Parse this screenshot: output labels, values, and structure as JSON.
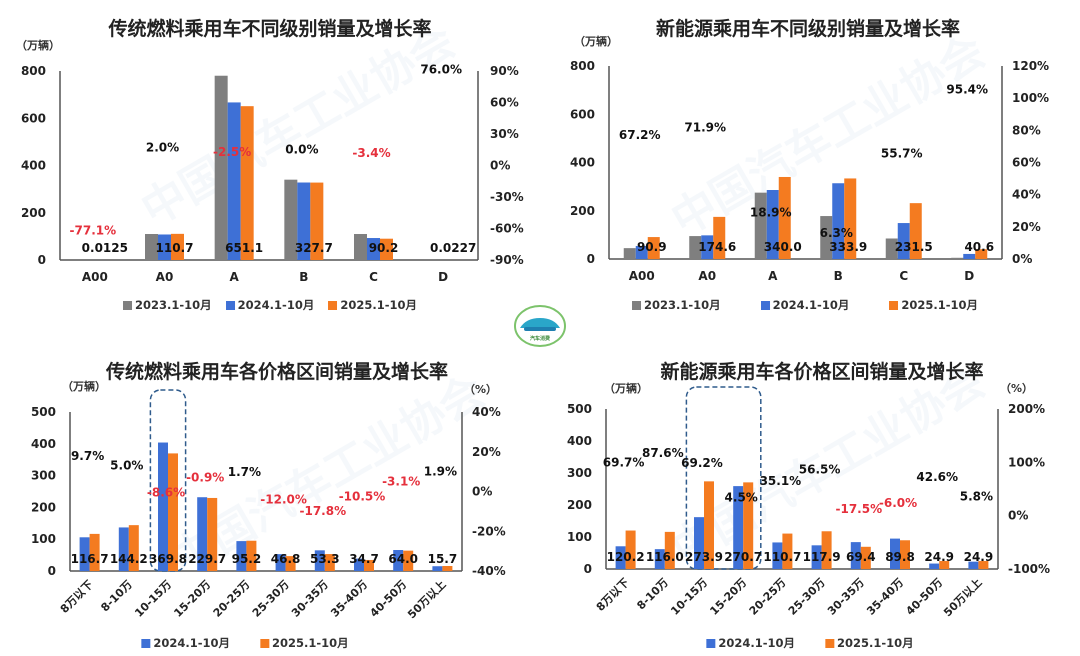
{
  "colors": {
    "y2023": "#7f7f7f",
    "y2024": "#3e70d6",
    "y2025": "#f47b20",
    "negative_label": "#e5303c",
    "positive_label": "#111111",
    "highlight_box": "#2f5b8c"
  },
  "logo_text": "汽车消费",
  "watermark": "中国汽车工业协会",
  "chart_data": [
    {
      "type": "bar",
      "title": "传统燃料乘用车不同级别销量及增长率",
      "ylabel": "（万辆）",
      "y2label": "",
      "categories": [
        "A00",
        "A0",
        "A",
        "B",
        "C",
        "D"
      ],
      "ylim": [
        0,
        800
      ],
      "yticks": [
        "0",
        "200",
        "400",
        "600",
        "800"
      ],
      "y2lim": [
        -90,
        90
      ],
      "y2ticks": [
        "-90%",
        "-60%",
        "-30%",
        "0%",
        "30%",
        "60%",
        "90%"
      ],
      "series": [
        {
          "name": "2023.1-10月",
          "values": [
            0.05,
            110,
            780,
            340,
            110,
            0.1
          ]
        },
        {
          "name": "2024.1-10月",
          "values": [
            0.05,
            108,
            667,
            328,
            93,
            0.01
          ]
        },
        {
          "name": "2025.1-10月",
          "values": [
            0.0125,
            110.7,
            651.1,
            327.7,
            90.2,
            0.0227
          ]
        }
      ],
      "value_labels": [
        "0.0125",
        "110.7",
        "651.1",
        "327.7",
        "90.2",
        "0.0227"
      ],
      "growth": [
        -77.1,
        2.0,
        -2.5,
        0.0,
        -3.4,
        76.0
      ],
      "growth_labels": [
        "-77.1%",
        "2.0%",
        "-2.5%",
        "0.0%",
        "-3.4%",
        "76.0%"
      ],
      "legend": "bottom",
      "grid": false
    },
    {
      "type": "bar",
      "title": "新能源乘用车不同级别销量及增长率",
      "ylabel": "（万辆）",
      "y2label": "",
      "categories": [
        "A00",
        "A0",
        "A",
        "B",
        "C",
        "D"
      ],
      "ylim": [
        0,
        800
      ],
      "yticks": [
        "0",
        "200",
        "400",
        "600",
        "800"
      ],
      "y2lim": [
        0,
        120
      ],
      "y2ticks": [
        "0%",
        "20%",
        "40%",
        "60%",
        "80%",
        "100%",
        "120%"
      ],
      "series": [
        {
          "name": "2023.1-10月",
          "values": [
            45,
            95,
            275,
            178,
            85,
            5
          ]
        },
        {
          "name": "2024.1-10月",
          "values": [
            54,
            98,
            286,
            314,
            149,
            21
          ]
        },
        {
          "name": "2025.1-10月",
          "values": [
            90.9,
            174.6,
            340.0,
            333.9,
            231.5,
            40.6
          ]
        }
      ],
      "value_labels": [
        "90.9",
        "174.6",
        "340.0",
        "333.9",
        "231.5",
        "40.6"
      ],
      "growth": [
        67.2,
        71.9,
        18.9,
        6.3,
        55.7,
        95.4
      ],
      "growth_labels": [
        "67.2%",
        "71.9%",
        "18.9%",
        "6.3%",
        "55.7%",
        "95.4%"
      ],
      "legend": "bottom",
      "grid": false
    },
    {
      "type": "bar",
      "title": "传统燃料乘用车各价格区间销量及增长率",
      "ylabel": "（万辆）",
      "y2label": "（%）",
      "categories": [
        "8万以下",
        "8-10万",
        "10-15万",
        "15-20万",
        "20-25万",
        "25-30万",
        "30-35万",
        "35-40万",
        "40-50万",
        "50万以上"
      ],
      "ylim": [
        0,
        500
      ],
      "yticks": [
        "0",
        "100",
        "200",
        "300",
        "400",
        "500"
      ],
      "y2lim": [
        -40,
        40
      ],
      "y2ticks": [
        "-40%",
        "-20%",
        "0%",
        "20%",
        "40%"
      ],
      "series": [
        {
          "name": "2024.1-10月",
          "values": [
            106,
            137,
            404,
            232,
            94,
            53,
            65,
            39,
            66,
            15
          ]
        },
        {
          "name": "2025.1-10月",
          "values": [
            116.7,
            144.2,
            369.8,
            229.7,
            95.2,
            46.8,
            53.3,
            34.7,
            64.0,
            15.7
          ]
        }
      ],
      "value_labels": [
        "116.7",
        "144.2",
        "369.8",
        "229.7",
        "95.2",
        "46.8",
        "53.3",
        "34.7",
        "64.0",
        "15.7"
      ],
      "growth": [
        9.7,
        5.0,
        -8.6,
        -0.9,
        1.7,
        -12.0,
        -17.8,
        -10.5,
        -3.1,
        1.9
      ],
      "growth_labels": [
        "9.7%",
        "5.0%",
        "-8.6%",
        "-0.9%",
        "1.7%",
        "-12.0%",
        "-17.8%",
        "-10.5%",
        "-3.1%",
        "1.9%"
      ],
      "highlight": [
        "10-15万"
      ],
      "legend": "bottom",
      "grid": false
    },
    {
      "type": "bar",
      "title": "新能源乘用车各价格区间销量及增长率",
      "ylabel": "（万辆）",
      "y2label": "（%）",
      "categories": [
        "8万以下",
        "8-10万",
        "10-15万",
        "15-20万",
        "20-25万",
        "25-30万",
        "30-35万",
        "35-40万",
        "40-50万",
        "50万以上"
      ],
      "ylim": [
        0,
        500
      ],
      "yticks": [
        "0",
        "100",
        "200",
        "300",
        "400",
        "500"
      ],
      "y2lim": [
        -100,
        200
      ],
      "y2ticks": [
        "-100%",
        "0%",
        "100%",
        "200%"
      ],
      "series": [
        {
          "name": "2024.1-10月",
          "values": [
            71,
            62,
            162,
            259,
            83,
            74,
            84,
            95,
            17,
            23
          ]
        },
        {
          "name": "2025.1-10月",
          "values": [
            120.2,
            116.0,
            273.9,
            270.7,
            110.7,
            117.9,
            69.4,
            89.8,
            24.9,
            24.9
          ]
        }
      ],
      "value_labels": [
        "120.2",
        "116.0",
        "273.9",
        "270.7",
        "110.7",
        "117.9",
        "69.4",
        "89.8",
        "24.9",
        "24.9"
      ],
      "growth": [
        69.7,
        87.6,
        69.2,
        4.5,
        35.1,
        56.5,
        -17.5,
        -6.0,
        42.6,
        5.8
      ],
      "growth_labels": [
        "69.7%",
        "87.6%",
        "69.2%",
        "4.5%",
        "35.1%",
        "56.5%",
        "-17.5%",
        "-6.0%",
        "42.6%",
        "5.8%"
      ],
      "highlight": [
        "10-15万",
        "15-20万"
      ],
      "legend": "bottom",
      "grid": false
    }
  ]
}
